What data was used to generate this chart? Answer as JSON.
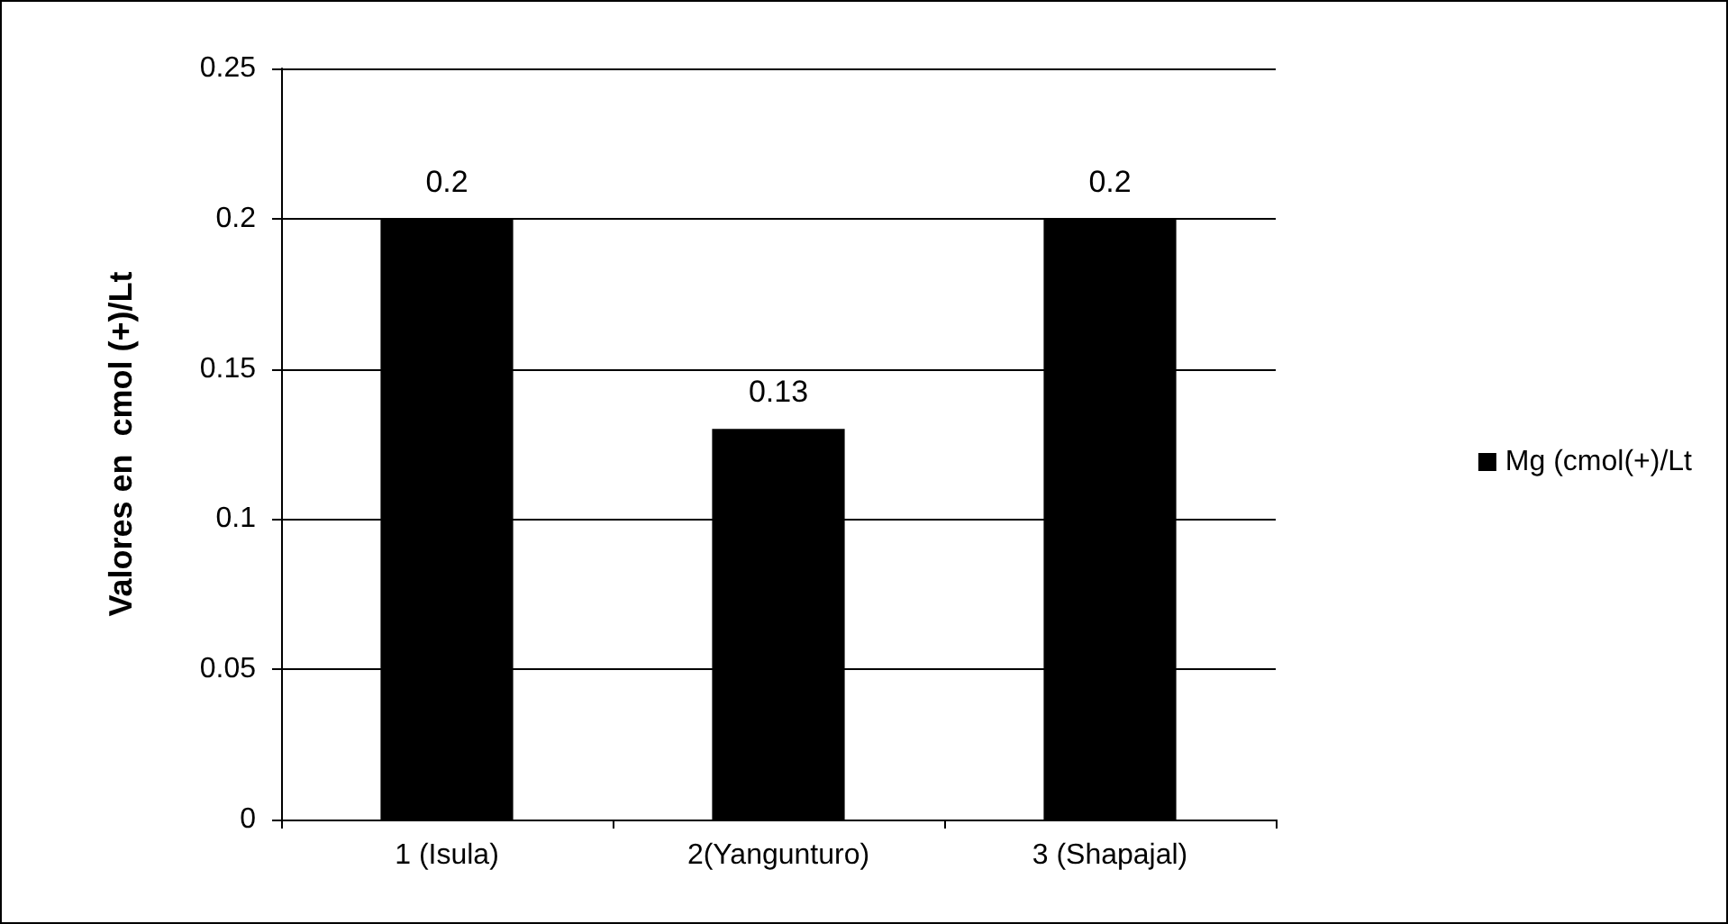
{
  "chart_data": {
    "type": "bar",
    "ylabel": "Valores en  cmol (+)/Lt",
    "categories": [
      "1 (Isula)",
      "2(Yangunturo)",
      "3 (Shapajal)"
    ],
    "series": [
      {
        "name": "Mg (cmol(+)/Lt",
        "color": "#000000",
        "values": [
          0.2,
          0.13,
          0.2
        ]
      }
    ],
    "ylim": [
      0,
      0.25
    ],
    "yticks": [
      0,
      0.05,
      0.1,
      0.15,
      0.2,
      0.25
    ],
    "grid": "y",
    "legend": "right",
    "data_labels": true
  }
}
